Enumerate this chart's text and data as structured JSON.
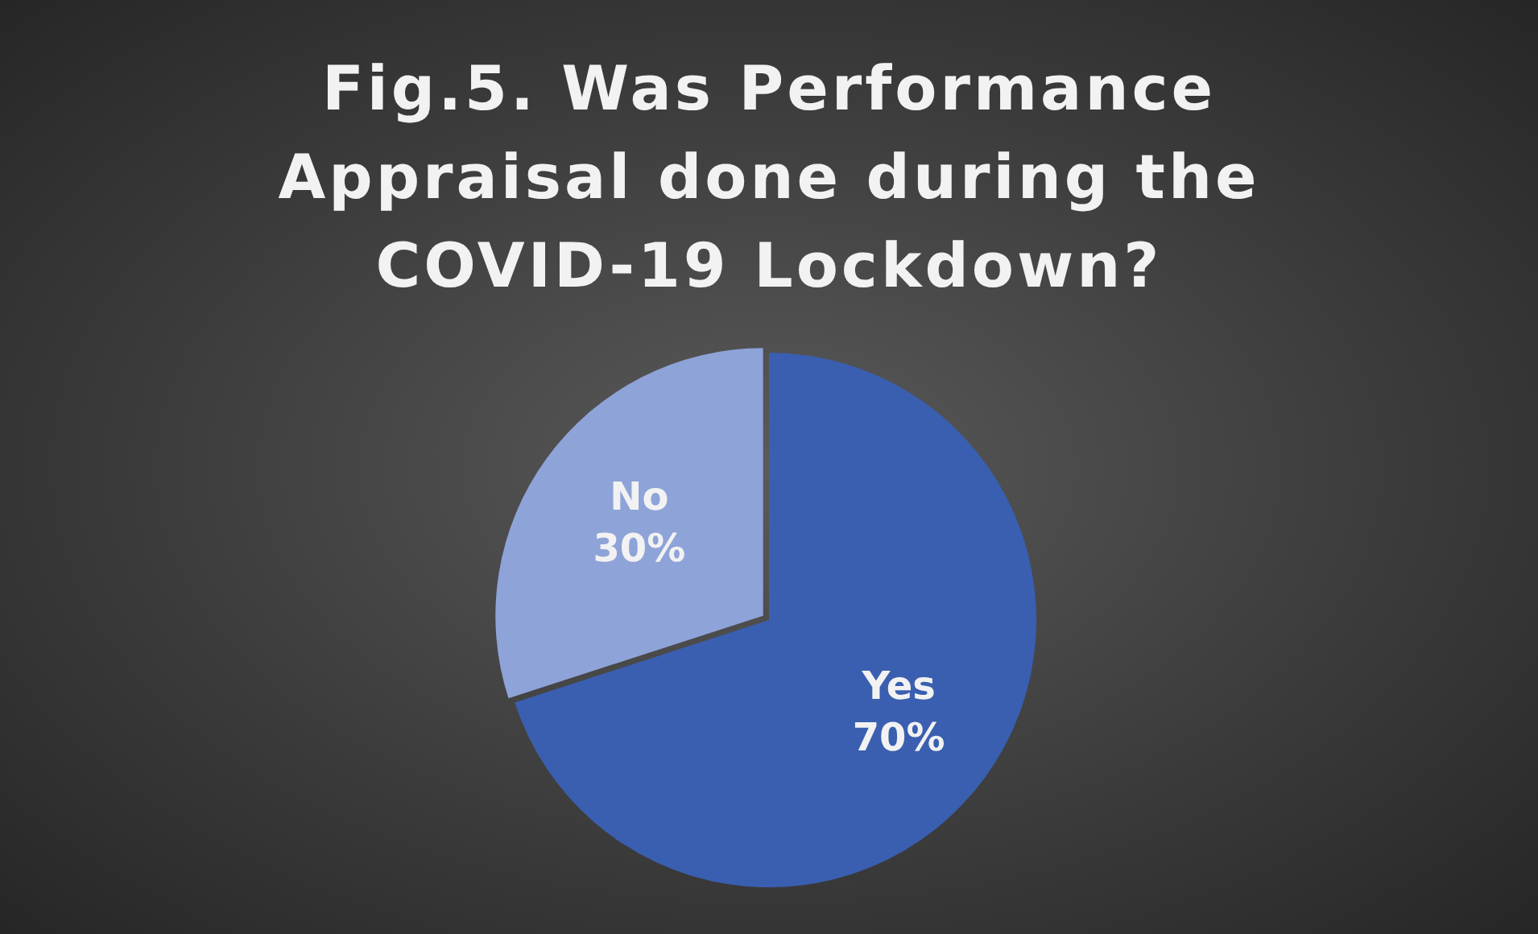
{
  "chart_data": {
    "type": "pie",
    "title": "Fig.5. Was Performance Appraisal done during the COVID-19 Lockdown?",
    "categories": [
      "Yes",
      "No"
    ],
    "values": [
      70,
      30
    ],
    "colors": [
      "#3a5fb0",
      "#8ea3d8"
    ],
    "value_labels": [
      "70%",
      "30%"
    ],
    "legend": false
  }
}
